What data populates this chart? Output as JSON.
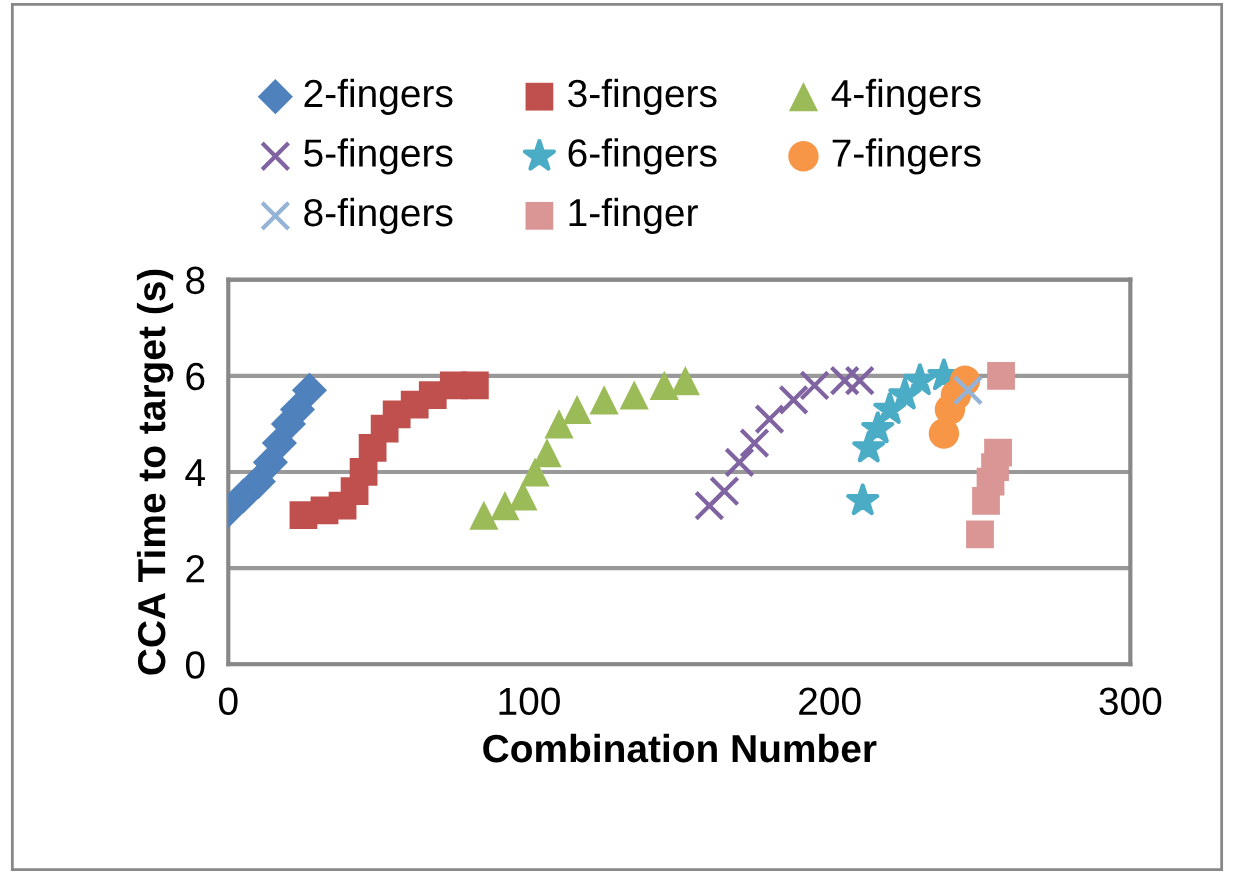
{
  "chart_data": {
    "type": "scatter",
    "xlabel": "Combination Number",
    "ylabel": "CCA Time to target (s)",
    "xlim": [
      0,
      300
    ],
    "xticks": [
      0,
      100,
      200,
      300
    ],
    "ylim": [
      0,
      8
    ],
    "yticks": [
      0,
      2,
      4,
      6,
      8
    ],
    "grid": "y",
    "legend": "top",
    "series": [
      {
        "name": "2-fingers",
        "color": "#4f81bd",
        "marker": "diamond",
        "x": [
          0,
          5,
          10,
          14,
          17,
          20,
          23,
          27
        ],
        "values": [
          3.2,
          3.5,
          3.8,
          4.2,
          4.6,
          5.0,
          5.3,
          5.7
        ]
      },
      {
        "name": "3-fingers",
        "color": "#c0504d",
        "marker": "square",
        "x": [
          25,
          32,
          38,
          42,
          45,
          48,
          52,
          56,
          62,
          68,
          75,
          82
        ],
        "values": [
          3.1,
          3.2,
          3.3,
          3.6,
          4.0,
          4.5,
          4.9,
          5.2,
          5.4,
          5.6,
          5.8,
          5.8
        ]
      },
      {
        "name": "4-fingers",
        "color": "#9bbb59",
        "marker": "triangle",
        "x": [
          85,
          92,
          98,
          102,
          106,
          110,
          116,
          125,
          135,
          145,
          152
        ],
        "values": [
          3.1,
          3.3,
          3.5,
          4.0,
          4.4,
          5.0,
          5.3,
          5.5,
          5.6,
          5.8,
          5.9
        ]
      },
      {
        "name": "5-fingers",
        "color": "#8064a2",
        "marker": "cross",
        "x": [
          160,
          165,
          170,
          175,
          180,
          188,
          195,
          205,
          210
        ],
        "values": [
          3.3,
          3.6,
          4.2,
          4.6,
          5.1,
          5.5,
          5.8,
          5.9,
          5.9
        ]
      },
      {
        "name": "6-fingers",
        "color": "#4bacc6",
        "marker": "star",
        "x": [
          211,
          213,
          216,
          220,
          225,
          230,
          238
        ],
        "values": [
          3.4,
          4.5,
          4.9,
          5.3,
          5.6,
          5.9,
          6.0
        ]
      },
      {
        "name": "7-fingers",
        "color": "#f79646",
        "marker": "circle",
        "x": [
          238,
          240,
          242,
          245
        ],
        "values": [
          4.8,
          5.3,
          5.6,
          5.9
        ]
      },
      {
        "name": "8-fingers",
        "color": "#95b3d7",
        "marker": "cross",
        "x": [
          246
        ],
        "values": [
          5.7
        ]
      },
      {
        "name": "1-finger",
        "color": "#d99694",
        "marker": "square",
        "x": [
          250,
          252,
          253.5,
          255,
          256,
          257
        ],
        "values": [
          2.7,
          3.4,
          3.8,
          4.1,
          4.4,
          6.0
        ]
      }
    ]
  }
}
